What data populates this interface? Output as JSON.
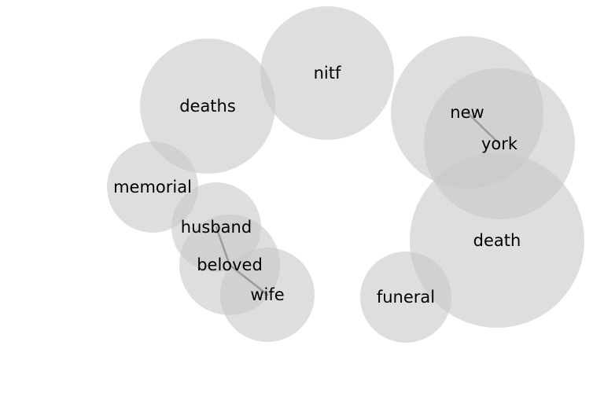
{
  "terms": [
    {
      "id": "nitf",
      "label": "nitf"
    },
    {
      "id": "deaths",
      "label": "deaths"
    },
    {
      "id": "new",
      "label": "new"
    },
    {
      "id": "york",
      "label": "york"
    },
    {
      "id": "memorial",
      "label": "memorial"
    },
    {
      "id": "husband",
      "label": "husband"
    },
    {
      "id": "beloved",
      "label": "beloved"
    },
    {
      "id": "wife",
      "label": "wife"
    },
    {
      "id": "death",
      "label": "death"
    },
    {
      "id": "funeral",
      "label": "funeral"
    }
  ],
  "links": [
    {
      "source": "new",
      "target": "york"
    },
    {
      "source": "husband",
      "target": "beloved"
    },
    {
      "source": "beloved",
      "target": "wife"
    }
  ],
  "colors": {
    "circle": "#c8c8c8",
    "link": "#9a9a9a",
    "text": "#000000",
    "background": "#ffffff"
  }
}
